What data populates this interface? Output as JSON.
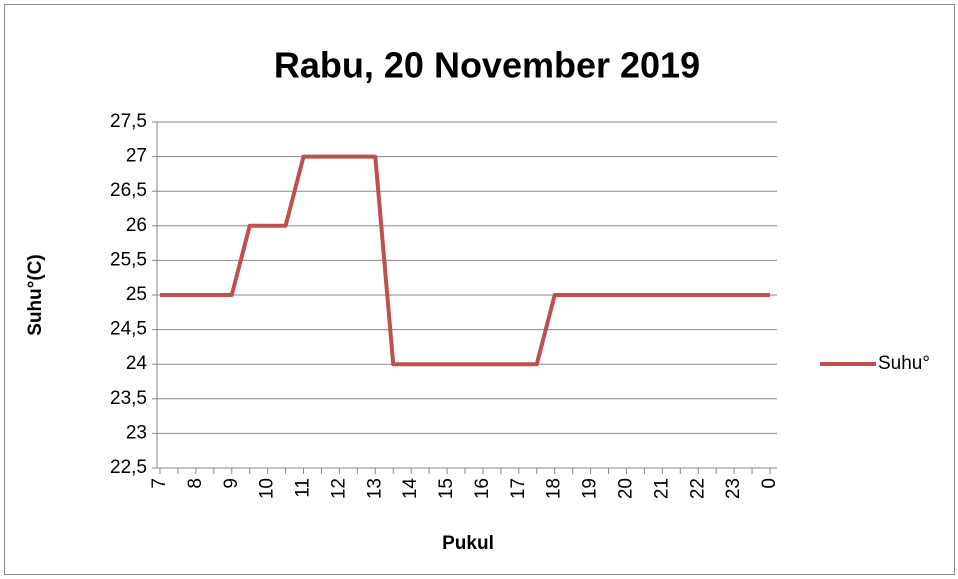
{
  "chart_data": {
    "type": "line",
    "title": "Rabu, 20 November 2019",
    "x_label": "Pukul",
    "y_label": "Suhu°(C)",
    "categories": [
      "7",
      null,
      "8",
      null,
      "9",
      null,
      "10",
      null,
      "11",
      null,
      "12",
      null,
      "13",
      null,
      "14",
      null,
      "15",
      null,
      "16",
      null,
      "17",
      null,
      "18",
      null,
      "19",
      null,
      "20",
      null,
      "21",
      null,
      "22",
      null,
      "23",
      null,
      "0"
    ],
    "series": [
      {
        "name": "Suhu°",
        "color": "#c0504d",
        "values": [
          25,
          25,
          25,
          25,
          25,
          26,
          26,
          26,
          27,
          27,
          27,
          27,
          27,
          24,
          24,
          24,
          24,
          24,
          24,
          24,
          24,
          24,
          25,
          25,
          25,
          25,
          25,
          25,
          25,
          25,
          25,
          25,
          25,
          25,
          25
        ]
      }
    ],
    "ylim": [
      22.5,
      27.5
    ],
    "yticks": [
      {
        "value": 22.5,
        "label": "22,5"
      },
      23,
      {
        "value": 23.5,
        "label": "23,5"
      },
      24,
      {
        "value": 24.5,
        "label": "24,5"
      },
      25,
      {
        "value": 25.5,
        "label": "25,5"
      },
      26,
      {
        "value": 26.5,
        "label": "26,5"
      },
      27,
      {
        "value": 27.5,
        "label": "27,5"
      }
    ],
    "grid": true,
    "legend": "right"
  }
}
